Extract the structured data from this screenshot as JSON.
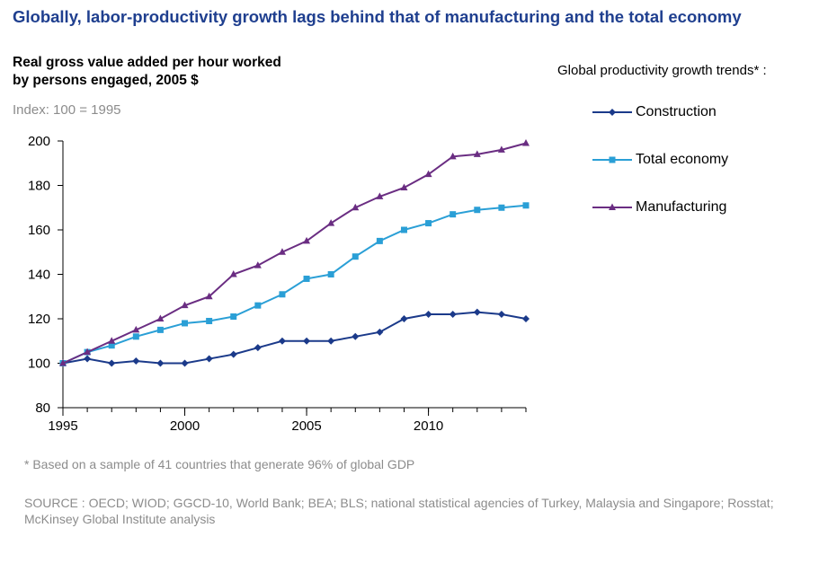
{
  "title": "Globally, labor-productivity growth lags behind that of manufacturing and the total economy",
  "y_title_line1": "Real gross value added per hour worked",
  "y_title_line2": "by persons engaged, 2005 $",
  "subtitle": "Index: 100 = 1995",
  "legend_title": "Global productivity growth trends* :",
  "footnote": "* Based on a sample of 41 countries that generate 96% of global GDP",
  "source": "SOURCE : OECD; WIOD; GGCD-10, World Bank; BEA; BLS; national statistical agencies of Turkey, Malaysia and Singapore; Rosstat; McKinsey Global Institute analysis",
  "chart_data": {
    "type": "line",
    "x": [
      1995,
      1996,
      1997,
      1998,
      1999,
      2000,
      2001,
      2002,
      2003,
      2004,
      2005,
      2006,
      2007,
      2008,
      2009,
      2010,
      2011,
      2012,
      2013,
      2014
    ],
    "xlim": [
      1995,
      2014
    ],
    "ylim": [
      80,
      200
    ],
    "x_ticks": [
      "1995",
      "2000",
      "2005",
      "2010"
    ],
    "y_ticks": [
      "80",
      "100",
      "120",
      "140",
      "160",
      "180",
      "200"
    ],
    "grid": false,
    "legend_placement": "right",
    "series": [
      {
        "name": "Construction",
        "color": "#1b3a8a",
        "marker": "diamond",
        "values": [
          100,
          102,
          100,
          101,
          100,
          100,
          102,
          104,
          107,
          110,
          110,
          110,
          112,
          114,
          120,
          122,
          122,
          123,
          122,
          120
        ]
      },
      {
        "name": "Total economy",
        "color": "#2a9fd6",
        "marker": "square",
        "values": [
          100,
          105,
          108,
          112,
          115,
          118,
          119,
          121,
          126,
          131,
          138,
          140,
          148,
          155,
          160,
          163,
          167,
          169,
          170,
          171
        ]
      },
      {
        "name": "Manufacturing",
        "color": "#6a2d82",
        "marker": "triangle",
        "values": [
          100,
          105,
          110,
          115,
          120,
          126,
          130,
          140,
          144,
          150,
          155,
          163,
          170,
          175,
          179,
          185,
          193,
          194,
          196,
          199
        ]
      }
    ]
  }
}
